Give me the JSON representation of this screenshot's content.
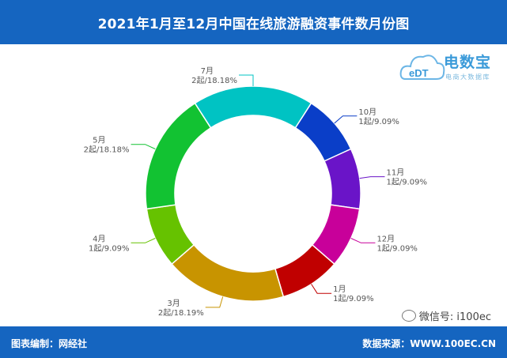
{
  "header": {
    "title": "2021年1月至12月中国在线旅游融资事件数月份图"
  },
  "logo": {
    "brand": "电数宝",
    "sub": "电商大数据库",
    "mark": "eDT"
  },
  "footer": {
    "left": "图表编制：网经社",
    "right": "数据来源：WWW.100EC.CN"
  },
  "watermark": {
    "text": "微信号: i100ec"
  },
  "chart_data": {
    "type": "pie",
    "variant": "donut",
    "title": "2021年1月至12月中国在线旅游融资事件数月份图",
    "slices": [
      {
        "month": "1月",
        "label": "1起/9.09%",
        "value": 1,
        "color": "#c00000"
      },
      {
        "month": "3月",
        "label": "2起/18.19%",
        "value": 2,
        "color": "#c89400"
      },
      {
        "month": "4月",
        "label": "1起/9.09%",
        "value": 1,
        "color": "#66c200"
      },
      {
        "month": "5月",
        "label": "2起/18.18%",
        "value": 2,
        "color": "#12c232"
      },
      {
        "month": "7月",
        "label": "2起/18.18%",
        "value": 2,
        "color": "#00c3c3"
      },
      {
        "month": "10月",
        "label": "1起/9.09%",
        "value": 1,
        "color": "#0a3ec8"
      },
      {
        "month": "11月",
        "label": "1起/9.09%",
        "value": 1,
        "color": "#6a14c8"
      },
      {
        "month": "12月",
        "label": "1起/9.09%",
        "value": 1,
        "color": "#c8009a"
      }
    ]
  }
}
